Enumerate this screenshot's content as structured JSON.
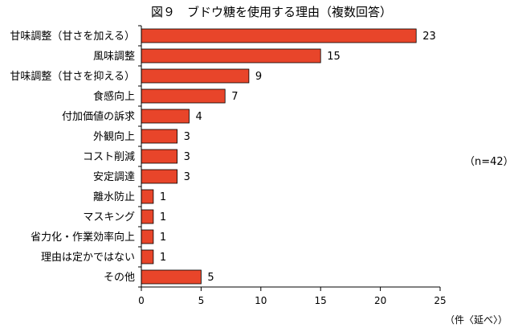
{
  "chart_data": {
    "type": "bar",
    "orientation": "horizontal",
    "title": "図９　ブドウ糖を使用する理由（複数回答）",
    "categories": [
      "甘味調整（甘さを加える）",
      "風味調整",
      "甘味調整（甘さを抑える）",
      "食感向上",
      "付加価値の訴求",
      "外観向上",
      "コスト削減",
      "安定調達",
      "離水防止",
      "マスキング",
      "省力化・作業効率向上",
      "理由は定かではない",
      "その他"
    ],
    "values": [
      23,
      15,
      9,
      7,
      4,
      3,
      3,
      3,
      1,
      1,
      1,
      1,
      5
    ],
    "xlim": [
      0,
      25
    ],
    "xticks": [
      0,
      5,
      10,
      15,
      20,
      25
    ],
    "note": "（n=42）",
    "unit": "（件〈延べ〉）",
    "bar_color": "#e8452a",
    "grid": false,
    "legend": "none"
  }
}
